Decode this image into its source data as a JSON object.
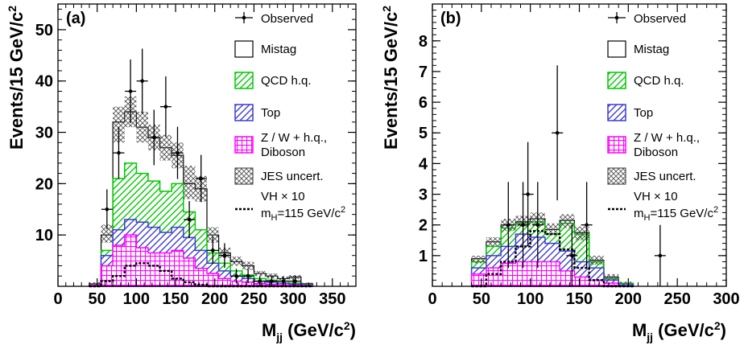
{
  "colors": {
    "qcd": "#00c800",
    "top": "#3c3cd2",
    "zw": "#ff00ff",
    "jes": "#505050",
    "signal": "#000000"
  },
  "chart_data": [
    {
      "type": "histogram",
      "panel_label": "(a)",
      "xlabel": "M",
      "xlabel_sub": "jj",
      "xlabel_unit": " (GeV/c",
      "xlabel_unit_sup": "2",
      "xlabel_close": ")",
      "ylabel": "Events/15 GeV/c",
      "ylabel_sup": "2",
      "xlim": [
        0,
        380
      ],
      "ylim": [
        0,
        55
      ],
      "xticks": [
        0,
        50,
        100,
        150,
        200,
        250,
        300,
        350
      ],
      "yticks": [
        10,
        20,
        30,
        40,
        50
      ],
      "bin_edges": [
        40,
        55,
        70,
        85,
        100,
        115,
        130,
        145,
        160,
        175,
        190,
        205,
        220,
        235,
        250,
        265,
        280,
        295,
        310,
        325
      ],
      "stack": {
        "zw": [
          0.3,
          4.0,
          8.0,
          10.0,
          7.5,
          6.5,
          6.5,
          7.0,
          5.5,
          3.5,
          2.5,
          1.5,
          1.0,
          0.8,
          0.5,
          0.4,
          0.3,
          0.2,
          0.1
        ],
        "top": [
          0.3,
          6.0,
          11.0,
          13.0,
          12.5,
          11.5,
          10.5,
          11.5,
          9.5,
          7.0,
          4.5,
          3.0,
          2.0,
          1.5,
          1.0,
          0.8,
          0.6,
          0.4,
          0.2
        ],
        "qcd": [
          0.4,
          7.0,
          21.0,
          24.0,
          22.0,
          20.5,
          18.5,
          20.0,
          14.5,
          11.0,
          6.5,
          4.5,
          3.0,
          2.2,
          1.5,
          1.2,
          1.0,
          0.6,
          0.3
        ],
        "mistag": [
          0.5,
          10.0,
          32.0,
          34.0,
          31.0,
          29.0,
          27.0,
          25.5,
          20.0,
          19.0,
          10.0,
          6.5,
          4.8,
          4.0,
          2.5,
          2.0,
          1.5,
          1.8,
          0.5
        ],
        "jes_low": [
          0.2,
          8.5,
          28.0,
          31.0,
          28.0,
          26.5,
          24.5,
          23.0,
          17.0,
          16.5,
          8.5,
          5.5,
          4.0,
          3.2,
          2.0,
          1.5,
          1.2,
          1.4,
          0.3
        ],
        "jes_high": [
          0.8,
          12.0,
          35.0,
          37.0,
          34.0,
          31.5,
          29.5,
          28.0,
          23.5,
          21.5,
          11.5,
          7.5,
          5.8,
          4.8,
          3.0,
          2.5,
          1.9,
          2.2,
          0.7
        ]
      },
      "signal_vh_x10": [
        0,
        1.0,
        2.0,
        4.0,
        4.5,
        4.0,
        3.0,
        1.5,
        0.8,
        0.3,
        0,
        0,
        0,
        0,
        0,
        0,
        0,
        0,
        0
      ],
      "observed": {
        "x": [
          62.5,
          77.5,
          92.5,
          107.5,
          122.5,
          137.5,
          152.5,
          167.5,
          182.5,
          197.5,
          212.5,
          227.5,
          242.5,
          257.5,
          272.5,
          287.5,
          302.5
        ],
        "y": [
          15,
          26,
          38,
          40,
          29,
          35,
          26,
          13,
          21,
          7,
          6,
          2,
          2,
          1,
          1,
          1,
          1
        ],
        "err": [
          3.9,
          5.1,
          6.2,
          6.3,
          5.4,
          5.9,
          5.1,
          3.6,
          4.6,
          2.6,
          2.4,
          1.4,
          1.4,
          1.0,
          1.0,
          1.0,
          1.0
        ]
      }
    },
    {
      "type": "histogram",
      "panel_label": "(b)",
      "xlabel": "M",
      "xlabel_sub": "jj",
      "xlabel_unit": " (GeV/c",
      "xlabel_unit_sup": "2",
      "xlabel_close": ")",
      "ylabel": "Events/15 GeV/c",
      "ylabel_sup": "2",
      "xlim": [
        0,
        300
      ],
      "ylim": [
        0,
        9.2
      ],
      "xticks": [
        0,
        50,
        100,
        150,
        200,
        250,
        300
      ],
      "yticks": [
        1,
        2,
        3,
        4,
        5,
        6,
        7,
        8
      ],
      "bin_edges": [
        40,
        55,
        70,
        85,
        100,
        115,
        130,
        145,
        160,
        175,
        190,
        205
      ],
      "stack": {
        "zw": [
          0.4,
          0.6,
          0.75,
          0.8,
          0.8,
          0.8,
          0.5,
          0.3,
          0.2,
          0.1,
          0.0
        ],
        "top": [
          0.6,
          1.0,
          1.3,
          1.7,
          1.6,
          1.4,
          1.15,
          0.8,
          0.6,
          0.2,
          0.05
        ],
        "qcd": [
          0.8,
          1.3,
          1.9,
          2.05,
          2.1,
          1.7,
          2.05,
          1.7,
          0.8,
          0.25,
          0.1
        ],
        "mistag": [
          0.9,
          1.45,
          2.0,
          2.1,
          2.2,
          1.85,
          2.15,
          1.75,
          0.85,
          0.3,
          0.1
        ],
        "jes_low": [
          0.75,
          1.3,
          1.8,
          1.95,
          2.0,
          1.7,
          1.9,
          1.5,
          0.7,
          0.2,
          0.05
        ],
        "jes_high": [
          1.0,
          1.6,
          2.2,
          2.3,
          2.4,
          2.05,
          2.35,
          1.95,
          1.0,
          0.4,
          0.15
        ]
      },
      "signal_vh_x10": [
        0,
        0.4,
        0.8,
        1.3,
        1.8,
        1.7,
        1.2,
        0.6,
        0.2,
        0,
        0
      ],
      "observed": {
        "x": [
          77.5,
          92.5,
          97.5,
          107.5,
          127.5,
          142.5,
          157.5,
          232.5
        ],
        "y": [
          2,
          2,
          3,
          2,
          5,
          1,
          2,
          1
        ],
        "err": [
          1.4,
          1.4,
          1.7,
          1.4,
          2.2,
          1.0,
          1.4,
          1.0
        ]
      }
    }
  ],
  "legend": {
    "observed": "Observed",
    "mistag": "Mistag",
    "qcd": "QCD h.q.",
    "top": "Top",
    "zw_line1": "Z / W + h.q.,",
    "zw_line2": "Diboson",
    "jes": "JES uncert.",
    "signal_line1": "VH × 10",
    "signal_line2a": "m",
    "signal_line2_sub": "H",
    "signal_line2b": "=115 GeV/c",
    "signal_line2_sup": "2"
  }
}
